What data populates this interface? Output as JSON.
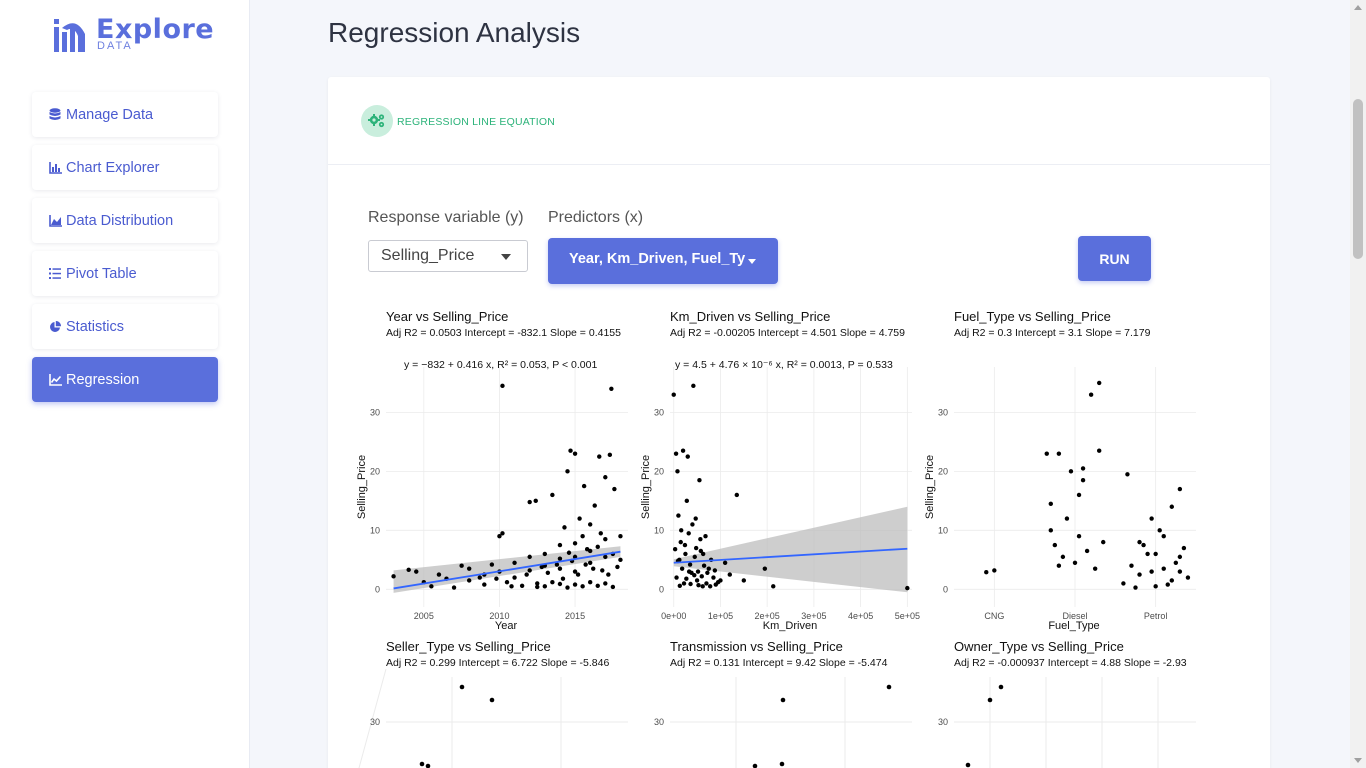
{
  "brand": {
    "name": "Explore",
    "sub": "DATA"
  },
  "sidebar": {
    "items": [
      {
        "label": "Manage Data",
        "icon": "database-icon"
      },
      {
        "label": "Chart Explorer",
        "icon": "bar-chart-icon"
      },
      {
        "label": "Data Distribution",
        "icon": "area-chart-icon"
      },
      {
        "label": "Pivot Table",
        "icon": "list-icon"
      },
      {
        "label": "Statistics",
        "icon": "pie-chart-icon"
      },
      {
        "label": "Regression",
        "icon": "line-chart-icon",
        "active": true
      }
    ]
  },
  "page": {
    "title": "Regression Analysis"
  },
  "card": {
    "header": "REGRESSION LINE EQUATION",
    "header_icon": "gears-icon"
  },
  "controls": {
    "response_label": "Response variable (y)",
    "response_value": "Selling_Price",
    "predictors_label": "Predictors (x)",
    "predictors_value": "Year, Km_Driven, Fuel_Ty",
    "run_label": "RUN"
  },
  "colors": {
    "accent": "#5a6fdc",
    "fit_line": "#3366ff",
    "ci_band": "#bdbdbd",
    "header_green": "#2db37a"
  },
  "plots": {
    "year": {
      "title": "Year vs Selling_Price",
      "stats": "Adj R2 =  0.0503 Intercept = -832.1  Slope = 0.4155",
      "eq": "y = −832 + 0.416 x, R² = 0.053, P < 0.001",
      "ylabel": "Selling_Price",
      "xlabel": "Year"
    },
    "km": {
      "title": "Km_Driven vs Selling_Price",
      "stats": "Adj R2 =  -0.00205 Intercept = 4.501  Slope = 4.759",
      "eq": "y = 4.5 + 4.76 × 10⁻⁶ x, R² = 0.0013, P = 0.533",
      "ylabel": "Selling_Price",
      "xlabel": "Km_Driven"
    },
    "fuel": {
      "title": "Fuel_Type vs Selling_Price",
      "stats": "Adj R2 =  0.3 Intercept = 3.1  Slope = 7.179",
      "ylabel": "Selling_Price",
      "xlabel": "Fuel_Type"
    },
    "seller": {
      "title": "Seller_Type vs Selling_Price",
      "stats": "Adj R2 =  0.299 Intercept = 6.722  Slope = -5.846"
    },
    "trans": {
      "title": "Transmission vs Selling_Price",
      "stats": "Adj R2 =  0.131 Intercept = 9.42  Slope = -5.474"
    },
    "owner": {
      "title": "Owner_Type vs Selling_Price",
      "stats": "Adj R2 =  -0.000937 Intercept = 4.88  Slope = -2.93"
    }
  },
  "chart_data": [
    {
      "type": "scatter",
      "title": "Year vs Selling_Price",
      "xlabel": "Year",
      "ylabel": "Selling_Price",
      "xlim": [
        2002.5,
        2018.5
      ],
      "ylim": [
        -3,
        36
      ],
      "xticks": [
        2005,
        2010,
        2015
      ],
      "yticks": [
        0,
        10,
        20,
        30
      ],
      "fit": {
        "intercept": -832.1,
        "slope": 0.4155
      },
      "ci": {
        "lo_start": -0.6,
        "hi_start": 3.2,
        "lo_end": 5.5,
        "hi_end": 7.3
      },
      "points": [
        [
          2003,
          2.2
        ],
        [
          2004,
          3.3
        ],
        [
          2004.5,
          3.0
        ],
        [
          2005,
          1.2
        ],
        [
          2005.5,
          0.5
        ],
        [
          2006,
          2.5
        ],
        [
          2006.5,
          1.8
        ],
        [
          2007,
          0.3
        ],
        [
          2007.5,
          4.0
        ],
        [
          2008,
          1.5
        ],
        [
          2008,
          3.5
        ],
        [
          2009,
          2.5
        ],
        [
          2009,
          0.8
        ],
        [
          2009.5,
          4.2
        ],
        [
          2010,
          9.0
        ],
        [
          2010,
          3.0
        ],
        [
          2010.2,
          9.5
        ],
        [
          2010.5,
          1.2
        ],
        [
          2011,
          4.5
        ],
        [
          2011,
          2.0
        ],
        [
          2011.5,
          0.6
        ],
        [
          2012,
          5.5
        ],
        [
          2012,
          14.8
        ],
        [
          2012.4,
          15.0
        ],
        [
          2012,
          3.2
        ],
        [
          2012.5,
          1.0
        ],
        [
          2013,
          6.0
        ],
        [
          2013,
          4.0
        ],
        [
          2013,
          0.5
        ],
        [
          2013.5,
          16.0
        ],
        [
          2014,
          7.5
        ],
        [
          2014,
          5.2
        ],
        [
          2014,
          3.5
        ],
        [
          2014,
          0.9
        ],
        [
          2014.3,
          10.5
        ],
        [
          2014.5,
          20.0
        ],
        [
          2014.7,
          23.5
        ],
        [
          2015,
          23.0
        ],
        [
          2015,
          5.5
        ],
        [
          2015,
          7.8
        ],
        [
          2015,
          3.0
        ],
        [
          2015,
          0.8
        ],
        [
          2015.3,
          12.0
        ],
        [
          2015.5,
          9.0
        ],
        [
          2015.6,
          17.5
        ],
        [
          2016,
          6.5
        ],
        [
          2016,
          4.5
        ],
        [
          2016,
          11.0
        ],
        [
          2016,
          1.2
        ],
        [
          2016.3,
          14.2
        ],
        [
          2016.5,
          7.2
        ],
        [
          2016.6,
          22.5
        ],
        [
          2017,
          5.5
        ],
        [
          2017,
          8.5
        ],
        [
          2017,
          19.0
        ],
        [
          2017,
          1.0
        ],
        [
          2017.3,
          22.8
        ],
        [
          2017.5,
          6.0
        ],
        [
          2017.6,
          17.0
        ],
        [
          2018,
          9.0
        ],
        [
          2018,
          5.0
        ],
        [
          2016.7,
          9.5
        ],
        [
          2015.8,
          6.8
        ],
        [
          2014.8,
          4.8
        ],
        [
          2013.8,
          4.2
        ],
        [
          2012.8,
          3.8
        ],
        [
          2011.8,
          2.5
        ],
        [
          2014.5,
          0.3
        ],
        [
          2015.5,
          0.5
        ],
        [
          2016.5,
          0.6
        ],
        [
          2017.5,
          0.4
        ],
        [
          2013.5,
          1.2
        ],
        [
          2012.5,
          0.4
        ],
        [
          2010.8,
          0.5
        ],
        [
          2009.8,
          1.8
        ],
        [
          2008.7,
          2.0
        ],
        [
          2016.2,
          3.5
        ],
        [
          2015.2,
          2.5
        ],
        [
          2014.2,
          1.8
        ],
        [
          2013.2,
          2.8
        ],
        [
          2017.2,
          2.5
        ],
        [
          2016.8,
          3.2
        ],
        [
          2017.8,
          3.8
        ],
        [
          2015.7,
          4.2
        ],
        [
          2014.6,
          6.2
        ],
        [
          2017.4,
          34.0
        ],
        [
          2010.2,
          34.5
        ]
      ]
    },
    {
      "type": "scatter",
      "title": "Km_Driven vs Selling_Price",
      "xlabel": "Km_Driven",
      "ylabel": "Selling_Price",
      "xlim": [
        -8000,
        510000
      ],
      "ylim": [
        -3,
        36
      ],
      "xticks": [
        0,
        100000,
        200000,
        300000,
        400000,
        500000
      ],
      "xticklabels": [
        "0e+00",
        "1e+05",
        "2e+05",
        "3e+05",
        "4e+05",
        "5e+05"
      ],
      "yticks": [
        0,
        10,
        20,
        30
      ],
      "fit": {
        "intercept": 4.501,
        "slope": 4.759e-06
      },
      "ci": {
        "lo_start": 3.9,
        "hi_start": 5.1,
        "lo_end": -0.5,
        "hi_end": 14
      },
      "points": [
        [
          0,
          33
        ],
        [
          5000,
          23
        ],
        [
          8000,
          20
        ],
        [
          10000,
          12.5
        ],
        [
          12000,
          5
        ],
        [
          15000,
          8
        ],
        [
          18000,
          3.5
        ],
        [
          20000,
          23.5
        ],
        [
          22000,
          1
        ],
        [
          25000,
          6
        ],
        [
          28000,
          15
        ],
        [
          30000,
          22.5
        ],
        [
          32000,
          9.5
        ],
        [
          35000,
          4.2
        ],
        [
          38000,
          2.8
        ],
        [
          40000,
          11
        ],
        [
          42000,
          34.5
        ],
        [
          45000,
          5.5
        ],
        [
          48000,
          7
        ],
        [
          50000,
          1.5
        ],
        [
          52000,
          3
        ],
        [
          55000,
          18.5
        ],
        [
          58000,
          6.5
        ],
        [
          60000,
          2.2
        ],
        [
          62000,
          0.5
        ],
        [
          65000,
          4
        ],
        [
          68000,
          9
        ],
        [
          70000,
          1
        ],
        [
          75000,
          3.5
        ],
        [
          80000,
          5
        ],
        [
          85000,
          2
        ],
        [
          90000,
          0.8
        ],
        [
          100000,
          1.5
        ],
        [
          110000,
          4.5
        ],
        [
          120000,
          2.5
        ],
        [
          135000,
          16
        ],
        [
          150000,
          1.5
        ],
        [
          195000,
          3.5
        ],
        [
          213000,
          0.5
        ],
        [
          500000,
          0.2
        ],
        [
          3000,
          6.8
        ],
        [
          6000,
          2
        ],
        [
          9000,
          4.8
        ],
        [
          13000,
          0.6
        ],
        [
          16000,
          10
        ],
        [
          24000,
          7.5
        ],
        [
          27000,
          1.8
        ],
        [
          33000,
          3
        ],
        [
          36000,
          0.9
        ],
        [
          44000,
          2.4
        ],
        [
          47000,
          12
        ],
        [
          53000,
          0.7
        ],
        [
          57000,
          8.5
        ],
        [
          63000,
          6
        ],
        [
          72000,
          2.8
        ],
        [
          78000,
          0.5
        ],
        [
          88000,
          3.2
        ],
        [
          95000,
          1.2
        ]
      ]
    },
    {
      "type": "scatter",
      "title": "Fuel_Type vs Selling_Price",
      "xlabel": "Fuel_Type",
      "ylabel": "Selling_Price",
      "categories": [
        "CNG",
        "Diesel",
        "Petrol"
      ],
      "ylim": [
        -3,
        36
      ],
      "yticks": [
        0,
        10,
        20,
        30
      ],
      "points": [
        [
          "CNG",
          -0.1,
          2.9
        ],
        [
          "CNG",
          0.0,
          3.2
        ],
        [
          "Diesel",
          -0.35,
          23
        ],
        [
          "Diesel",
          -0.3,
          14.5
        ],
        [
          "Diesel",
          -0.25,
          7.5
        ],
        [
          "Diesel",
          -0.2,
          23
        ],
        [
          "Diesel",
          -0.15,
          5.5
        ],
        [
          "Diesel",
          -0.1,
          12
        ],
        [
          "Diesel",
          -0.05,
          20
        ],
        [
          "Diesel",
          0.0,
          4.5
        ],
        [
          "Diesel",
          0.05,
          9
        ],
        [
          "Diesel",
          0.1,
          20.5
        ],
        [
          "Diesel",
          0.15,
          6.5
        ],
        [
          "Diesel",
          0.2,
          33
        ],
        [
          "Diesel",
          0.25,
          3.5
        ],
        [
          "Diesel",
          0.3,
          35
        ],
        [
          "Diesel",
          0.35,
          8
        ],
        [
          "Diesel",
          0.1,
          18.5
        ],
        [
          "Diesel",
          -0.2,
          4
        ],
        [
          "Diesel",
          0.05,
          16
        ],
        [
          "Diesel",
          0.3,
          23.5
        ],
        [
          "Diesel",
          -0.3,
          10
        ],
        [
          "Petrol",
          -0.4,
          1
        ],
        [
          "Petrol",
          -0.3,
          4
        ],
        [
          "Petrol",
          -0.2,
          2.5
        ],
        [
          "Petrol",
          -0.1,
          6
        ],
        [
          "Petrol",
          0.0,
          0.5
        ],
        [
          "Petrol",
          0.1,
          3.5
        ],
        [
          "Petrol",
          0.2,
          1.5
        ],
        [
          "Petrol",
          0.3,
          5.5
        ],
        [
          "Petrol",
          0.4,
          2
        ],
        [
          "Petrol",
          -0.25,
          0.3
        ],
        [
          "Petrol",
          -0.15,
          7.5
        ],
        [
          "Petrol",
          -0.05,
          3
        ],
        [
          "Petrol",
          0.05,
          10
        ],
        [
          "Petrol",
          0.15,
          0.8
        ],
        [
          "Petrol",
          0.25,
          4.5
        ],
        [
          "Petrol",
          0.35,
          7
        ],
        [
          "Petrol",
          -0.35,
          19.5
        ],
        [
          "Petrol",
          0.3,
          17
        ],
        [
          "Petrol",
          -0.05,
          12
        ],
        [
          "Petrol",
          0.1,
          9
        ],
        [
          "Petrol",
          0.2,
          14
        ],
        [
          "Petrol",
          0.0,
          6
        ],
        [
          "Petrol",
          -0.2,
          8
        ],
        [
          "Petrol",
          0.3,
          3
        ]
      ]
    }
  ]
}
